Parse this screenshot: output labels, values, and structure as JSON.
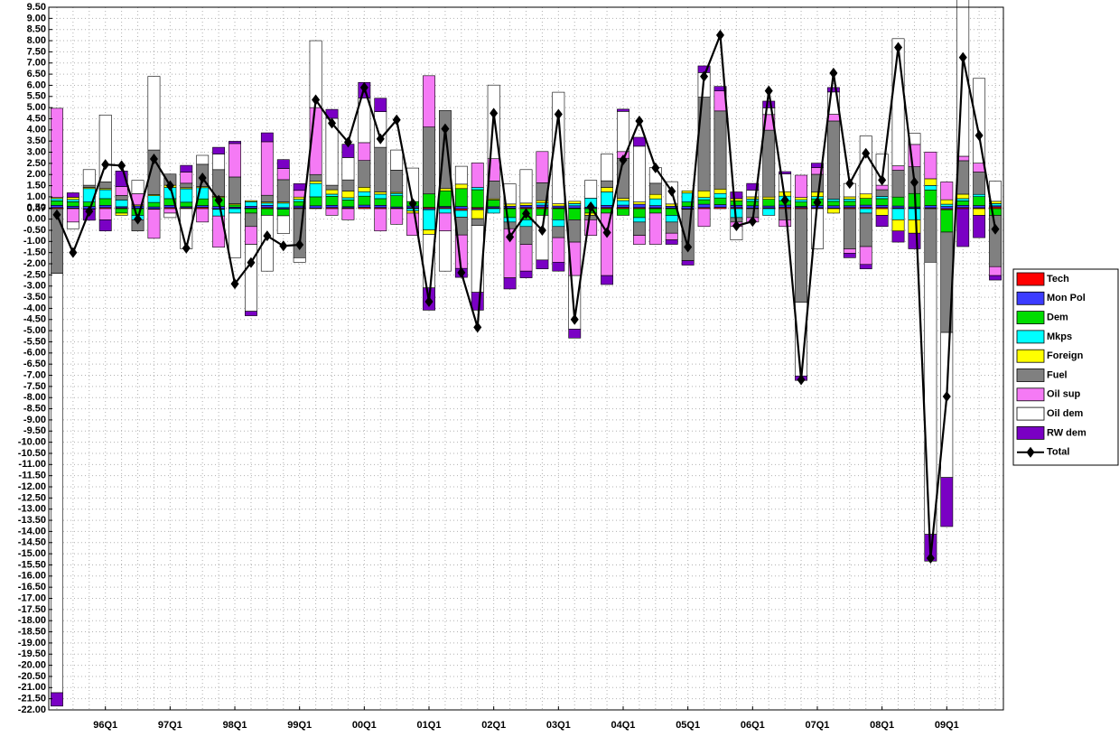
{
  "chart_data": {
    "type": "bar",
    "stacked": true,
    "baseline": 0.47,
    "grid": true,
    "legend": "right",
    "categories": [
      null,
      null,
      null,
      "96Q1",
      null,
      null,
      null,
      "97Q1",
      null,
      null,
      null,
      "98Q1",
      null,
      null,
      null,
      "99Q1",
      null,
      null,
      null,
      "00Q1",
      null,
      null,
      null,
      "01Q1",
      null,
      null,
      null,
      "02Q1",
      null,
      null,
      null,
      "03Q1",
      null,
      null,
      null,
      "04Q1",
      null,
      null,
      null,
      "05Q1",
      null,
      null,
      null,
      "06Q1",
      null,
      null,
      null,
      "07Q1",
      null,
      null,
      null,
      "08Q1",
      null,
      null,
      null,
      "09Q1",
      null,
      null,
      null
    ],
    "ylim": [
      -22,
      9.5
    ],
    "yticks": [
      {
        "value": 9.5,
        "label": "9.50"
      },
      {
        "value": 9,
        "label": "9.00"
      },
      {
        "value": 8.5,
        "label": "8.50"
      },
      {
        "value": 8,
        "label": "8.00"
      },
      {
        "value": 7.5,
        "label": "7.50"
      },
      {
        "value": 7,
        "label": "7.00"
      },
      {
        "value": 6.5,
        "label": "6.50"
      },
      {
        "value": 6,
        "label": "6.00"
      },
      {
        "value": 5.5,
        "label": "5.50"
      },
      {
        "value": 5,
        "label": "5.00"
      },
      {
        "value": 4.5,
        "label": "4.50"
      },
      {
        "value": 4,
        "label": "4.00"
      },
      {
        "value": 3.5,
        "label": "3.50"
      },
      {
        "value": 3,
        "label": "3.00"
      },
      {
        "value": 2.5,
        "label": "2.50"
      },
      {
        "value": 2,
        "label": "2.00"
      },
      {
        "value": 1.5,
        "label": "1.50"
      },
      {
        "value": 1,
        "label": "1.00"
      },
      {
        "value": 0.5,
        "label": "0.50"
      },
      {
        "value": 0.47,
        "label": "0.47"
      },
      {
        "value": 0,
        "label": "0.00"
      },
      {
        "value": -0.5,
        "label": "-0.50"
      },
      {
        "value": -1,
        "label": "-1.00"
      },
      {
        "value": -1.5,
        "label": "-1.50"
      },
      {
        "value": -2,
        "label": "-2.00"
      },
      {
        "value": -2.5,
        "label": "-2.50"
      },
      {
        "value": -3,
        "label": "-3.00"
      },
      {
        "value": -3.5,
        "label": "-3.50"
      },
      {
        "value": -4,
        "label": "-4.00"
      },
      {
        "value": -4.5,
        "label": "-4.50"
      },
      {
        "value": -5,
        "label": "-5.00"
      },
      {
        "value": -5.5,
        "label": "-5.50"
      },
      {
        "value": -6,
        "label": "-6.00"
      },
      {
        "value": -6.5,
        "label": "-6.50"
      },
      {
        "value": -7,
        "label": "-7.00"
      },
      {
        "value": -7.5,
        "label": "-7.50"
      },
      {
        "value": -8,
        "label": "-8.00"
      },
      {
        "value": -8.5,
        "label": "-8.50"
      },
      {
        "value": -9,
        "label": "-9.00"
      },
      {
        "value": -9.5,
        "label": "-9.50"
      },
      {
        "value": -10,
        "label": "-10.00"
      },
      {
        "value": -10.5,
        "label": "-10.50"
      },
      {
        "value": -11,
        "label": "-11.00"
      },
      {
        "value": -11.5,
        "label": "-11.50"
      },
      {
        "value": -12,
        "label": "-12.00"
      },
      {
        "value": -12.5,
        "label": "-12.50"
      },
      {
        "value": -13,
        "label": "-13.00"
      },
      {
        "value": -13.5,
        "label": "-13.50"
      },
      {
        "value": -14,
        "label": "-14.00"
      },
      {
        "value": -14.5,
        "label": "-14.50"
      },
      {
        "value": -15,
        "label": "-15.00"
      },
      {
        "value": -15.5,
        "label": "-15.50"
      },
      {
        "value": -16,
        "label": "-16.00"
      },
      {
        "value": -16.5,
        "label": "-16.50"
      },
      {
        "value": -17,
        "label": "-17.00"
      },
      {
        "value": -17.5,
        "label": "-17.50"
      },
      {
        "value": -18,
        "label": "-18.00"
      },
      {
        "value": -18.5,
        "label": "-18.50"
      },
      {
        "value": -19,
        "label": "-19.00"
      },
      {
        "value": -19.5,
        "label": "-19.50"
      },
      {
        "value": -20,
        "label": "-20.00"
      },
      {
        "value": -20.5,
        "label": "-20.50"
      },
      {
        "value": -21,
        "label": "-21.00"
      },
      {
        "value": -21.5,
        "label": "-21.50"
      },
      {
        "value": -22,
        "label": "-22.00"
      }
    ],
    "series": [
      {
        "name": "Tech",
        "color": "#ff0000",
        "values": [
          0.05,
          0.03,
          -0.02,
          0.05,
          0.04,
          0.02,
          -0.03,
          0.05,
          0.04,
          0.06,
          -0.03,
          0.02,
          0.03,
          0.05,
          -0.02,
          0.04,
          0.03,
          0.05,
          0.04,
          0.06,
          0.05,
          0.03,
          0.04,
          0.06,
          0.05,
          -0.08,
          0.05,
          0.04,
          0.03,
          0.05,
          0.06,
          0.04,
          0.03,
          0.02,
          0.05,
          0.06,
          0.05,
          0.04,
          0.03,
          -0.03,
          0.05,
          0.06,
          0.05,
          0.03,
          0.04,
          0.06,
          0.05,
          0.04,
          0.03,
          0.05,
          0.06,
          0.05,
          0.04,
          0.03,
          0.04,
          -0.05,
          0.05,
          0.04,
          0.08
        ]
      },
      {
        "name": "Mon Pol",
        "color": "#3c3cff",
        "values": [
          0.1,
          0.08,
          0.1,
          0.1,
          0.05,
          0.1,
          0.08,
          0.1,
          0.05,
          0.08,
          0.1,
          0.05,
          0.08,
          0.1,
          0.05,
          0.08,
          0.1,
          0.1,
          0.05,
          0.1,
          0.1,
          0.05,
          0.08,
          -0.05,
          0.05,
          0.1,
          -0.05,
          0.05,
          0.08,
          0.1,
          0.1,
          0.08,
          0.1,
          0.05,
          0.1,
          0.1,
          0.15,
          0.1,
          0.08,
          0.1,
          0.15,
          0.12,
          0.1,
          0.1,
          0.08,
          0.1,
          0.05,
          0.1,
          0.1,
          0.08,
          0.1,
          0.1,
          0.08,
          0.05,
          0.1,
          0.1,
          0.1,
          0.1,
          0.05
        ]
      },
      {
        "name": "Dem",
        "color": "#00dd00",
        "values": [
          0.2,
          0.2,
          0.2,
          0.3,
          -0.2,
          -0.3,
          0.2,
          0.3,
          0.2,
          0.3,
          0.4,
          0.1,
          -0.2,
          -0.3,
          -0.3,
          0.2,
          0.4,
          0.4,
          0.3,
          0.4,
          0.3,
          0.5,
          0.2,
          0.6,
          0.7,
          0.8,
          0.8,
          0.3,
          -0.4,
          -0.5,
          -0.3,
          -0.5,
          -0.5,
          -0.2,
          -0.2,
          -0.3,
          -0.4,
          -0.2,
          -0.3,
          0.2,
          0.2,
          0.3,
          0.2,
          0.2,
          0.3,
          0.2,
          0.2,
          0.3,
          0.2,
          0.2,
          0.3,
          0.3,
          0.4,
          0.6,
          0.7,
          -1.0,
          0.2,
          0.4,
          -0.3
        ]
      },
      {
        "name": "Mkps",
        "color": "#00ffff",
        "values": [
          0.1,
          0.1,
          0.6,
          0.4,
          0.3,
          -0.2,
          0.3,
          0.5,
          0.6,
          0.5,
          -0.3,
          -0.2,
          0.2,
          0.1,
          0.2,
          0.1,
          0.6,
          0.1,
          0.1,
          0.2,
          0.2,
          0.1,
          -0.1,
          -0.9,
          -0.2,
          -0.3,
          0.1,
          -0.2,
          -0.2,
          -0.3,
          0.1,
          -0.3,
          0.1,
          0.4,
          0.6,
          0.2,
          -0.2,
          0.3,
          -0.3,
          0.4,
          0.1,
          0.2,
          -0.4,
          0.1,
          -0.3,
          0.2,
          0.1,
          0.1,
          0.1,
          0.1,
          -0.2,
          0.1,
          -0.5,
          -0.5,
          0.2,
          0.1,
          0.1,
          0.1,
          0.1
        ]
      },
      {
        "name": "Foreign",
        "color": "#ffff00",
        "values": [
          0.05,
          0.1,
          0.05,
          0.05,
          -0.1,
          0.05,
          0.05,
          0.1,
          0.05,
          0.05,
          0.05,
          0.05,
          0.05,
          0.05,
          0.05,
          0.1,
          0.1,
          0.2,
          0.3,
          0.2,
          0.1,
          0.05,
          -0.1,
          -0.2,
          0.1,
          0.2,
          -0.4,
          0.05,
          0.1,
          0.1,
          0.1,
          0.1,
          0.1,
          -0.1,
          0.2,
          0.1,
          0.1,
          0.2,
          0.1,
          0.1,
          0.3,
          0.2,
          0.1,
          0.1,
          0.1,
          0.2,
          0.1,
          0.2,
          -0.2,
          0.1,
          0.2,
          -0.3,
          -0.5,
          -0.6,
          0.3,
          0.2,
          0.2,
          -0.3,
          0.1
        ]
      },
      {
        "name": "Fuel",
        "color": "#808080",
        "values": [
          -2.9,
          0,
          0.1,
          0.3,
          0.2,
          -0.5,
          2.0,
          0.5,
          0.2,
          1.0,
          1.2,
          1.2,
          -0.6,
          0.3,
          1.0,
          -2.2,
          0.3,
          0.2,
          0.5,
          1.2,
          2.0,
          1.0,
          0,
          3.0,
          3.5,
          -0.8,
          -0.3,
          0.8,
          -0.3,
          -0.8,
          0.8,
          -0.5,
          -1.0,
          -0.2,
          0.3,
          1.8,
          -0.6,
          0.5,
          -0.5,
          -2.3,
          4.2,
          3.5,
          -0.2,
          -0.4,
          3.0,
          -0.5,
          -4.2,
          0.8,
          3.5,
          -1.8,
          -1.5,
          0.3,
          1.2,
          1.2,
          -2.4,
          -4.5,
          1.5,
          1.0,
          -2.3
        ]
      },
      {
        "name": "Oil sup",
        "color": "#f57af5",
        "values": [
          4.0,
          -0.6,
          0,
          -0.5,
          0.4,
          0.5,
          -1.3,
          -0.2,
          0.5,
          -0.6,
          -1.4,
          1.5,
          -0.8,
          2.4,
          0.5,
          0.3,
          3.0,
          -0.3,
          -0.5,
          0.8,
          -1.0,
          -0.7,
          -1.0,
          2.3,
          -0.8,
          -1.5,
          1.1,
          1.0,
          -2.2,
          -1.2,
          1.4,
          -1.1,
          -1.5,
          -0.7,
          -2.8,
          0.3,
          -0.4,
          -1.4,
          -0.3,
          0,
          -0.8,
          0.9,
          -0.2,
          -0.2,
          0.7,
          -0.3,
          1.0,
          0.3,
          0.3,
          -0.2,
          -0.8,
          0.2,
          0.2,
          1.0,
          1.2,
          0.8,
          0.2,
          0.4,
          -0.4
        ]
      },
      {
        "name": "Oil dem",
        "color": "#ffffff",
        "values": [
          -18.8,
          -0.3,
          0.7,
          3.0,
          0,
          0.6,
          3.3,
          -0.2,
          -1.8,
          0.4,
          0.7,
          -2.0,
          -3.0,
          -2.5,
          -0.8,
          -0.2,
          3.0,
          3.0,
          1.0,
          2.0,
          1.6,
          0.9,
          1.5,
          -2.4,
          -1.8,
          0.8,
          -3.0,
          3.3,
          0.9,
          1.5,
          -2.0,
          5.0,
          -2.4,
          0.8,
          1.2,
          1.8,
          2.5,
          0.7,
          1.0,
          0,
          1.1,
          0,
          -0.6,
          0.3,
          0.3,
          0.8,
          -3.3,
          -1.8,
          1.0,
          0.6,
          2.6,
          1.4,
          5.7,
          0.5,
          -12.2,
          -6.5,
          7.2,
          3.8,
          0.9
        ]
      },
      {
        "name": "RW dem",
        "color": "#7a00c4",
        "values": [
          -0.6,
          0.2,
          -0.5,
          -0.5,
          0.7,
          0,
          0,
          0,
          0.3,
          0,
          0.3,
          0.1,
          -0.2,
          0.4,
          0.4,
          0.3,
          0,
          0.4,
          0.6,
          0.7,
          0.6,
          0,
          0,
          -1.0,
          0,
          -0.4,
          -0.8,
          0,
          -0.5,
          -0.3,
          -0.4,
          -0.4,
          -0.4,
          0,
          -0.4,
          0.1,
          0.4,
          0,
          -0.2,
          -0.2,
          0.3,
          0.2,
          0.3,
          0.3,
          0.3,
          0.1,
          -0.2,
          0.2,
          0.2,
          -0.2,
          -0.2,
          -0.5,
          -0.5,
          -0.7,
          -1.2,
          -2.2,
          -1.7,
          -1.0,
          -0.2
        ]
      },
      {
        "name": "Total",
        "type": "line",
        "color": "#000000",
        "values": [
          0.2,
          -1.5,
          0.35,
          2.45,
          2.4,
          0.0,
          2.7,
          1.5,
          -1.3,
          1.85,
          0.85,
          -2.9,
          -1.95,
          -0.75,
          -1.2,
          -1.15,
          5.35,
          4.3,
          3.45,
          5.9,
          3.6,
          4.45,
          0.7,
          -3.7,
          4.05,
          -2.4,
          -4.85,
          4.75,
          -0.8,
          0.25,
          -0.5,
          4.7,
          -4.5,
          0.55,
          -0.6,
          2.65,
          4.4,
          2.3,
          1.25,
          -1.25,
          6.4,
          8.25,
          -0.3,
          -0.1,
          5.75,
          0.85,
          -7.2,
          0.75,
          6.55,
          1.6,
          2.95,
          1.75,
          7.7,
          1.65,
          -15.2,
          -7.95,
          7.25,
          3.75,
          -0.45
        ]
      }
    ]
  }
}
